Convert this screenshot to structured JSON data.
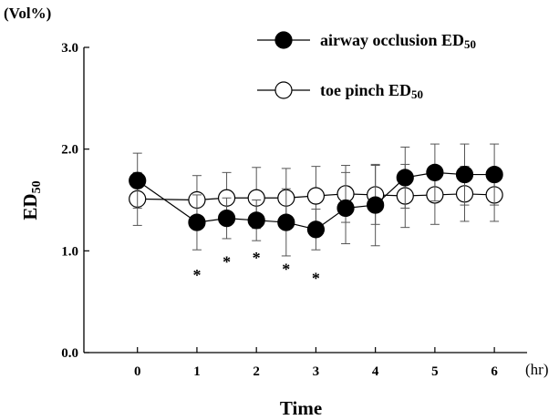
{
  "chart_data": {
    "type": "line",
    "ylabel_main": "ED",
    "ylabel_sub": "50",
    "yunit": "(Vol%)",
    "xlabel": "Time",
    "xunit": "(hr)",
    "xlim": [
      -0.9,
      6.55
    ],
    "ylim": [
      0.0,
      3.0
    ],
    "xticks": [
      0,
      1,
      2,
      3,
      4,
      5,
      6
    ],
    "xtick_labels": [
      "0",
      "1",
      "2",
      "3",
      "4",
      "5",
      "6"
    ],
    "yticks": [
      0.0,
      1.0,
      2.0,
      3.0
    ],
    "ytick_labels": [
      "0.0",
      "1.0",
      "2.0",
      "3.0"
    ],
    "grid": false,
    "legend_position": "top-right",
    "series": [
      {
        "name_main": "airway occlusion ED",
        "name_sub": "50",
        "marker": "filled-circle",
        "x": [
          0,
          1,
          1.5,
          2,
          2.5,
          3,
          3.5,
          4,
          4.5,
          5,
          5.5,
          6
        ],
        "y": [
          1.69,
          1.28,
          1.32,
          1.3,
          1.28,
          1.21,
          1.42,
          1.45,
          1.72,
          1.77,
          1.75,
          1.75
        ],
        "err": [
          0.27,
          0.27,
          0.2,
          0.2,
          0.33,
          0.2,
          0.35,
          0.4,
          0.3,
          0.28,
          0.3,
          0.3
        ]
      },
      {
        "name_main": "toe pinch ED",
        "name_sub": "50",
        "marker": "open-circle",
        "x": [
          0,
          1,
          1.5,
          2,
          2.5,
          3,
          3.5,
          4,
          4.5,
          5,
          5.5,
          6
        ],
        "y": [
          1.51,
          1.5,
          1.52,
          1.52,
          1.52,
          1.54,
          1.56,
          1.55,
          1.54,
          1.55,
          1.56,
          1.55
        ],
        "err": [
          0.26,
          0.24,
          0.25,
          0.3,
          0.29,
          0.29,
          0.28,
          0.29,
          0.31,
          0.29,
          0.27,
          0.26
        ]
      }
    ],
    "annotations": [
      {
        "text": "*",
        "x": 1,
        "y": 0.76
      },
      {
        "text": "*",
        "x": 1.5,
        "y": 0.89
      },
      {
        "text": "*",
        "x": 2,
        "y": 0.93
      },
      {
        "text": "*",
        "x": 2.5,
        "y": 0.82
      },
      {
        "text": "*",
        "x": 3,
        "y": 0.73
      }
    ]
  }
}
